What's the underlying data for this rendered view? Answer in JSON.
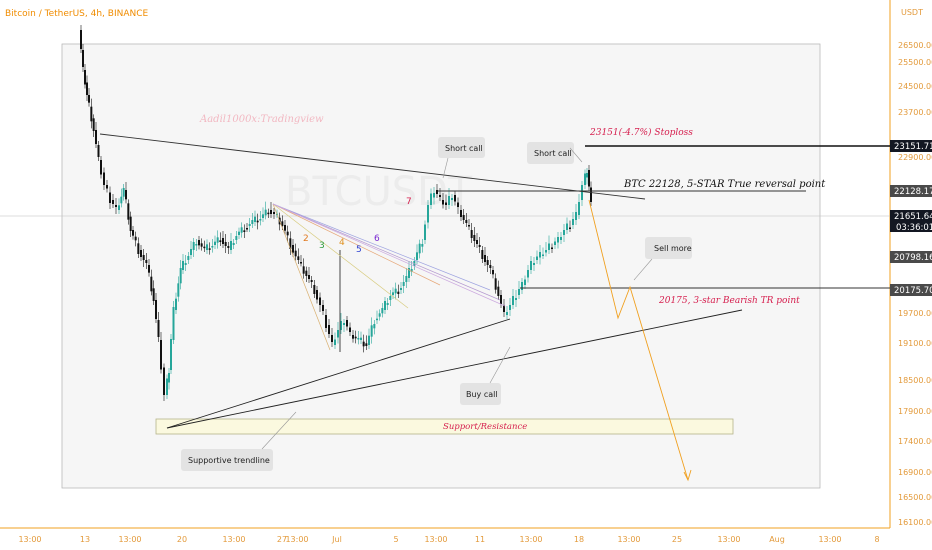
{
  "header": {
    "title": "Bitcoin / TetherUS, 4h, BINANCE",
    "currency": "USDT"
  },
  "watermark": "Aadil1000x:Tradingview",
  "chart_data": {
    "type": "candlestick",
    "symbol": "BTCUSDT",
    "timeframe": "4h",
    "exchange": "BINANCE",
    "ylim": [
      16100,
      26200
    ],
    "y_ticks": [
      26500.0,
      25500.0,
      24500.0,
      23700.0,
      22900.0,
      21650.0,
      20175.0,
      19700.0,
      19100.0,
      18500.0,
      17900.0,
      17400.0,
      16900.0,
      16500.0,
      16100.0
    ],
    "y_tick_labels": [
      "26500.00",
      "25500.00",
      "24500.00",
      "23700.00",
      "22900.00",
      "19700.00",
      "19100.00",
      "18500.00",
      "17900.00",
      "17400.00",
      "16900.00",
      "16500.00",
      "16100.00"
    ],
    "x_tick_labels": [
      "13:00",
      "13",
      "13:00",
      "20",
      "13:00",
      "27",
      "13:00",
      "Jul",
      "5",
      "13:00",
      "11",
      "13:00",
      "18",
      "13:00",
      "25",
      "13:00",
      "Aug",
      "13:00",
      "8"
    ],
    "price_labels": [
      {
        "value": 23151.71,
        "label": "23151.71",
        "color": "#131722"
      },
      {
        "value": 22128.17,
        "label": "22128.17",
        "color": "#4a4a4a"
      },
      {
        "value": 21651.64,
        "label": "21651.64",
        "color": "#131722",
        "sub": "03:36:01"
      },
      {
        "value": 20798.16,
        "label": "20798.16",
        "color": "#4a4a4a"
      },
      {
        "value": 20175.7,
        "label": "20175.70",
        "color": "#4a4a4a"
      }
    ],
    "fib_labels": [
      "2",
      "3",
      "4",
      "5",
      "6",
      "7"
    ],
    "annotations": [
      {
        "text": "23151(-4.7%) Stoploss",
        "color": "#d6204f"
      },
      {
        "text": "BTC 22128, 5-STAR True reversal point",
        "color": "#111111"
      },
      {
        "text": "20175, 3-star Bearish TR point",
        "color": "#d6204f"
      },
      {
        "text": "Support/Resistance",
        "color": "#d6204f"
      }
    ],
    "callouts": [
      "Short call",
      "Short call",
      "Sell more",
      "Buy call",
      "Supportive trendline"
    ]
  }
}
